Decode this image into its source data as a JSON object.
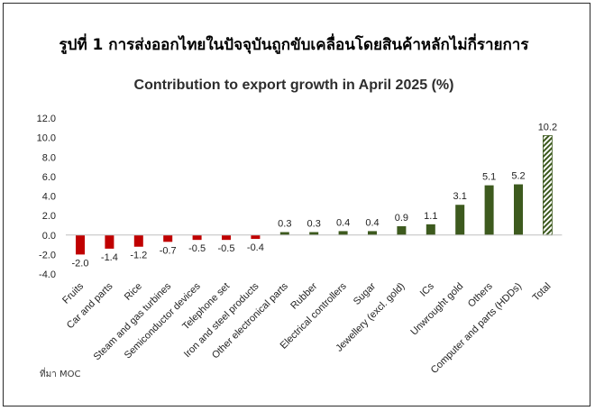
{
  "header": {
    "title": "รูปที่ 1 การส่งออกไทยในปัจจุบันถูกขับเคลื่อนโดยสินค้าหลักไม่กี่รายการ"
  },
  "footer": {
    "source": "ที่มา MOC"
  },
  "colors": {
    "negative": "#c00000",
    "positive": "#3d5a1e",
    "total_hatch": "#3d5a1e"
  },
  "chart_data": {
    "type": "bar",
    "title": "Contribution to export growth in April 2025 (%)",
    "xlabel": "",
    "ylabel": "",
    "ylim": [
      -4.0,
      12.0
    ],
    "yticks": [
      "12.0",
      "10.0",
      "8.0",
      "6.0",
      "4.0",
      "2.0",
      "0.0",
      "-2.0",
      "-4.0"
    ],
    "grid": false,
    "legend": "none",
    "categories": [
      "Fruits",
      "Car and parts",
      "Rice",
      "Steam and gas turbines",
      "Semiconductor devices",
      "Telephone set",
      "Iron and steel products",
      "Other electronical parts",
      "Rubber",
      "Electrical controllers",
      "Sugar",
      "Jewellery (excl. gold)",
      "ICs",
      "Unwrought gold",
      "Others",
      "Computer and parts (HDDs)",
      "Total"
    ],
    "values": [
      -2.0,
      -1.4,
      -1.2,
      -0.7,
      -0.5,
      -0.5,
      -0.4,
      0.3,
      0.3,
      0.4,
      0.4,
      0.9,
      1.1,
      3.1,
      5.1,
      5.2,
      10.2
    ],
    "value_labels": [
      "-2.0",
      "-1.4",
      "-1.2",
      "-0.7",
      "-0.5",
      "-0.5",
      "-0.4",
      "0.3",
      "0.3",
      "0.4",
      "0.4",
      "0.9",
      "1.1",
      "3.1",
      "5.1",
      "5.2",
      "10.2"
    ]
  }
}
